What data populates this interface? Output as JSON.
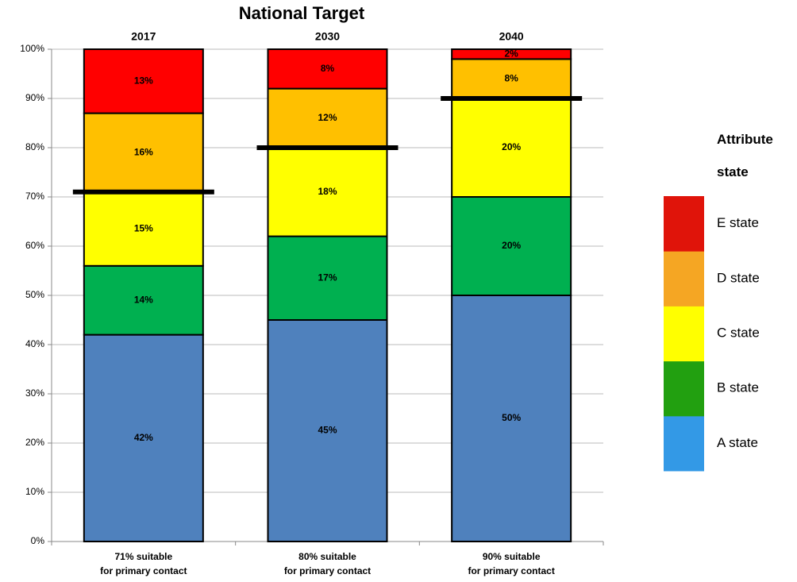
{
  "chart_data": {
    "type": "stacked_bar",
    "title": "National Target",
    "groups": [
      "2017",
      "2030",
      "2040"
    ],
    "categories": [
      "71% suitable\nfor primary contact",
      "80% suitable\nfor primary contact",
      "90% suitable\nfor primary contact"
    ],
    "series": [
      {
        "name": "A state",
        "color": "#4f81bd",
        "legend_color": "#3399e6",
        "values": [
          42,
          45,
          50
        ],
        "value_labels": [
          "42%",
          "45%",
          "50%"
        ]
      },
      {
        "name": "B state",
        "color": "#00b050",
        "legend_color": "#22a010",
        "values": [
          14,
          17,
          20
        ],
        "value_labels": [
          "14%",
          "17%",
          "20%"
        ]
      },
      {
        "name": "C state",
        "color": "#ffff00",
        "legend_color": "#ffff00",
        "values": [
          15,
          18,
          20
        ],
        "value_labels": [
          "15%",
          "18%",
          "20%"
        ]
      },
      {
        "name": "D state",
        "color": "#ffc000",
        "legend_color": "#f5a623",
        "values": [
          16,
          12,
          8
        ],
        "value_labels": [
          "16%",
          "12%",
          "8%"
        ]
      },
      {
        "name": "E state",
        "color": "#ff0000",
        "legend_color": "#e0140a",
        "values": [
          13,
          8,
          2
        ],
        "value_labels": [
          "13%",
          "8%",
          "2%"
        ]
      }
    ],
    "targets": [
      71,
      80,
      90
    ],
    "legend_title": "Attribute state",
    "ylim": [
      0,
      100
    ],
    "yticks": [
      {
        "value": 0,
        "label": "0%"
      },
      {
        "value": 10,
        "label": "10%"
      },
      {
        "value": 20,
        "label": "20%"
      },
      {
        "value": 30,
        "label": "30%"
      },
      {
        "value": 40,
        "label": "40%"
      },
      {
        "value": 50,
        "label": "50%"
      },
      {
        "value": 60,
        "label": "60%"
      },
      {
        "value": 70,
        "label": "70%"
      },
      {
        "value": 80,
        "label": "80%"
      },
      {
        "value": 90,
        "label": "90%"
      },
      {
        "value": 100,
        "label": "100%"
      }
    ],
    "grid": true
  }
}
